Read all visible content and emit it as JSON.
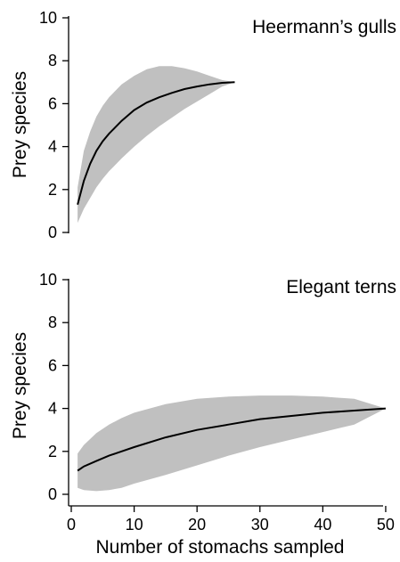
{
  "chart_data": [
    {
      "type": "area",
      "title": "Heermann’s gulls",
      "ylabel": "Prey species",
      "xlabel": "",
      "ylim": [
        0,
        10
      ],
      "xlim": [
        0,
        51
      ],
      "yticks": [
        0,
        2,
        4,
        6,
        8,
        10
      ],
      "xticks": [],
      "x": [
        1,
        2,
        3,
        4,
        5,
        6,
        8,
        10,
        12,
        14,
        16,
        18,
        20,
        22,
        24,
        26
      ],
      "series": [
        {
          "values": [
            1.3,
            2.4,
            3.2,
            3.8,
            4.25,
            4.6,
            5.2,
            5.7,
            6.05,
            6.3,
            6.5,
            6.68,
            6.8,
            6.9,
            6.97,
            7.0
          ]
        }
      ],
      "band": {
        "upper": [
          2.1,
          3.8,
          4.7,
          5.4,
          5.9,
          6.3,
          6.9,
          7.3,
          7.6,
          7.75,
          7.75,
          7.65,
          7.5,
          7.3,
          7.1,
          7.0
        ],
        "lower": [
          0.45,
          1.1,
          1.6,
          2.1,
          2.5,
          2.85,
          3.45,
          4.0,
          4.5,
          4.95,
          5.35,
          5.75,
          6.1,
          6.45,
          6.8,
          7.0
        ]
      }
    },
    {
      "type": "area",
      "title": "Elegant terns",
      "ylabel": "Prey species",
      "xlabel": "Number of stomachs sampled",
      "ylim": [
        0,
        10
      ],
      "xlim": [
        0,
        51
      ],
      "yticks": [
        0,
        2,
        4,
        6,
        8,
        10
      ],
      "xticks": [
        0,
        10,
        20,
        30,
        40,
        50
      ],
      "x": [
        1,
        2,
        4,
        6,
        8,
        10,
        15,
        20,
        25,
        30,
        35,
        40,
        45,
        50
      ],
      "series": [
        {
          "values": [
            1.1,
            1.3,
            1.55,
            1.8,
            2.0,
            2.2,
            2.65,
            3.0,
            3.25,
            3.5,
            3.65,
            3.8,
            3.9,
            4.0
          ]
        }
      ],
      "band": {
        "upper": [
          1.9,
          2.3,
          2.85,
          3.25,
          3.55,
          3.8,
          4.2,
          4.45,
          4.55,
          4.6,
          4.6,
          4.55,
          4.45,
          4.0
        ],
        "lower": [
          0.3,
          0.2,
          0.15,
          0.2,
          0.3,
          0.5,
          0.9,
          1.35,
          1.8,
          2.2,
          2.55,
          2.9,
          3.25,
          4.0
        ]
      }
    }
  ]
}
